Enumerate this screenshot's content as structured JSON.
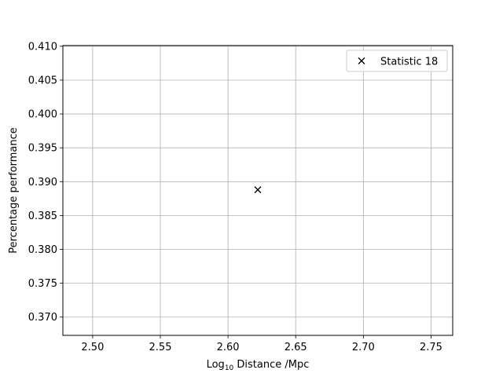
{
  "chart_data": {
    "type": "scatter",
    "title": "",
    "xlabel_prefix": "Log",
    "xlabel_sub": "10",
    "xlabel_suffix": " Distance /Mpc",
    "ylabel": "Percentage performance",
    "xlim": [
      2.478,
      2.766
    ],
    "ylim": [
      0.3673,
      0.4101
    ],
    "xticks": [
      2.5,
      2.55,
      2.6,
      2.65,
      2.7,
      2.75
    ],
    "xtick_labels": [
      "2.50",
      "2.55",
      "2.60",
      "2.65",
      "2.70",
      "2.75"
    ],
    "yticks": [
      0.37,
      0.375,
      0.38,
      0.385,
      0.39,
      0.395,
      0.4,
      0.405,
      0.41
    ],
    "ytick_labels": [
      "0.370",
      "0.375",
      "0.380",
      "0.385",
      "0.390",
      "0.395",
      "0.400",
      "0.405",
      "0.410"
    ],
    "grid": true,
    "legend_position": "top-right",
    "series": [
      {
        "name": "Statistic 18",
        "marker": "x",
        "color": "#000000",
        "points": [
          {
            "x": 2.622,
            "y": 0.3888
          }
        ]
      }
    ]
  }
}
